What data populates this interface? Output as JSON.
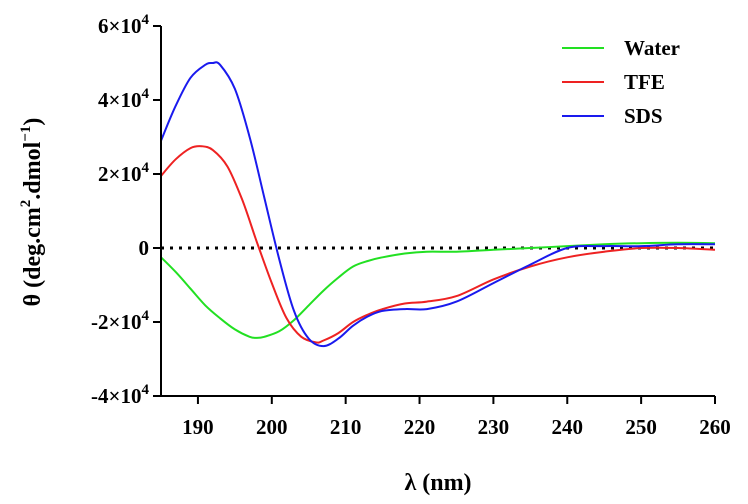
{
  "chart_data": {
    "type": "line",
    "title": "",
    "xlabel": "λ (nm)",
    "ylabel": {
      "prefix": "θ (deg.cm",
      "sup1": "2",
      "middle": ".dmol",
      "sup2": "−1",
      "suffix": ")"
    },
    "xlim": [
      185,
      260
    ],
    "ylim": [
      -40000,
      60000
    ],
    "xticks": [
      190,
      200,
      210,
      220,
      230,
      240,
      250,
      260
    ],
    "xtick_labels": [
      "190",
      "200",
      "210",
      "220",
      "230",
      "240",
      "250",
      "260"
    ],
    "yticks": [
      {
        "value": 60000,
        "mantissa": "6×10",
        "exp": "4"
      },
      {
        "value": 40000,
        "mantissa": "4×10",
        "exp": "4"
      },
      {
        "value": 20000,
        "mantissa": "2×10",
        "exp": "4"
      },
      {
        "value": 0,
        "mantissa": "0",
        "exp": ""
      },
      {
        "value": -20000,
        "mantissa": "-2×10",
        "exp": "4"
      },
      {
        "value": -40000,
        "mantissa": "-4×10",
        "exp": "4"
      }
    ],
    "zero_line": {
      "value": 0,
      "style": "dotted"
    },
    "legend_position": "top-right",
    "series": [
      {
        "name": "Water",
        "color": "#22e022",
        "x": [
          185,
          187,
          189,
          191,
          193,
          195,
          197,
          198,
          199,
          201,
          203,
          205,
          207,
          209,
          211,
          213,
          215,
          218,
          221,
          225,
          230,
          235,
          240,
          245,
          250,
          255,
          260
        ],
        "y": [
          -2500,
          -6500,
          -11000,
          -15500,
          -19000,
          -22000,
          -24000,
          -24300,
          -24000,
          -22500,
          -19500,
          -15500,
          -11500,
          -8000,
          -5000,
          -3500,
          -2500,
          -1500,
          -1000,
          -1000,
          -500,
          0,
          500,
          1000,
          1300,
          1400,
          1300
        ]
      },
      {
        "name": "TFE",
        "color": "#ee2222",
        "x": [
          185,
          187,
          189,
          190.5,
          192,
          194,
          196,
          198,
          200,
          202,
          204,
          206,
          207,
          209,
          211,
          213,
          215,
          218,
          221,
          225,
          230,
          235,
          240,
          245,
          250,
          255,
          260
        ],
        "y": [
          19500,
          24000,
          27000,
          27500,
          26500,
          22000,
          13000,
          1500,
          -9500,
          -19000,
          -24000,
          -25500,
          -25000,
          -23000,
          -20000,
          -18000,
          -16500,
          -15000,
          -14500,
          -13000,
          -8500,
          -5000,
          -2500,
          -1000,
          0,
          0,
          -500
        ]
      },
      {
        "name": "SDS",
        "color": "#1a1aee",
        "x": [
          185,
          187,
          189,
          191,
          192,
          193,
          195,
          197,
          199,
          201,
          203,
          205,
          207,
          209,
          211,
          213,
          215,
          218,
          221,
          225,
          230,
          235,
          240,
          245,
          250,
          255,
          260
        ],
        "y": [
          29000,
          38500,
          46000,
          49500,
          50000,
          49500,
          43000,
          30000,
          13500,
          -3000,
          -17000,
          -24500,
          -26500,
          -24500,
          -21000,
          -18500,
          -17000,
          -16500,
          -16500,
          -14500,
          -9500,
          -4500,
          0,
          500,
          500,
          1000,
          1000
        ]
      }
    ]
  }
}
